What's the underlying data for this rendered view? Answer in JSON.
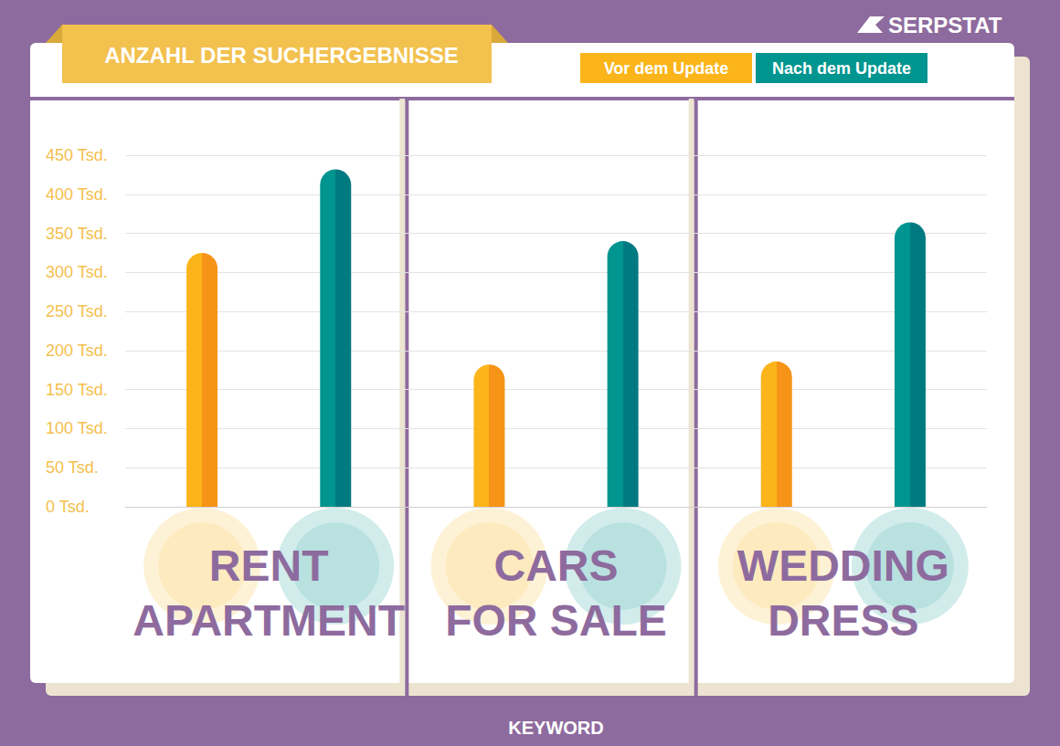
{
  "chart_data": {
    "type": "bar",
    "title": "ANZAHL DER SUCHERGEBNISSE",
    "annotation": "SERPSTAT",
    "x_label": "KEYWORD",
    "categories": [
      "RENT APARTMENT",
      "CARS FOR SALE",
      "WEDDING DRESS"
    ],
    "series": [
      {
        "name": "Vor dem Update",
        "color": "#fbb51a",
        "values": [
          325,
          182,
          186
        ]
      },
      {
        "name": "Nach dem Update",
        "color": "#00958f",
        "values": [
          432,
          340,
          364
        ]
      }
    ],
    "ylim": [
      0,
      450
    ],
    "yticks": [
      {
        "value": 0,
        "label": "0 Tsd."
      },
      {
        "value": 50,
        "label": "50 Tsd."
      },
      {
        "value": 100,
        "label": "100 Tsd."
      },
      {
        "value": 150,
        "label": "150 Tsd."
      },
      {
        "value": 200,
        "label": "200 Tsd."
      },
      {
        "value": 250,
        "label": "250 Tsd."
      },
      {
        "value": 300,
        "label": "300 Tsd."
      },
      {
        "value": 350,
        "label": "350 Tsd."
      },
      {
        "value": 400,
        "label": "400 Tsd."
      },
      {
        "value": 450,
        "label": "450 Tsd."
      }
    ],
    "grid": true,
    "legend": "top-right",
    "data_labels": false
  }
}
